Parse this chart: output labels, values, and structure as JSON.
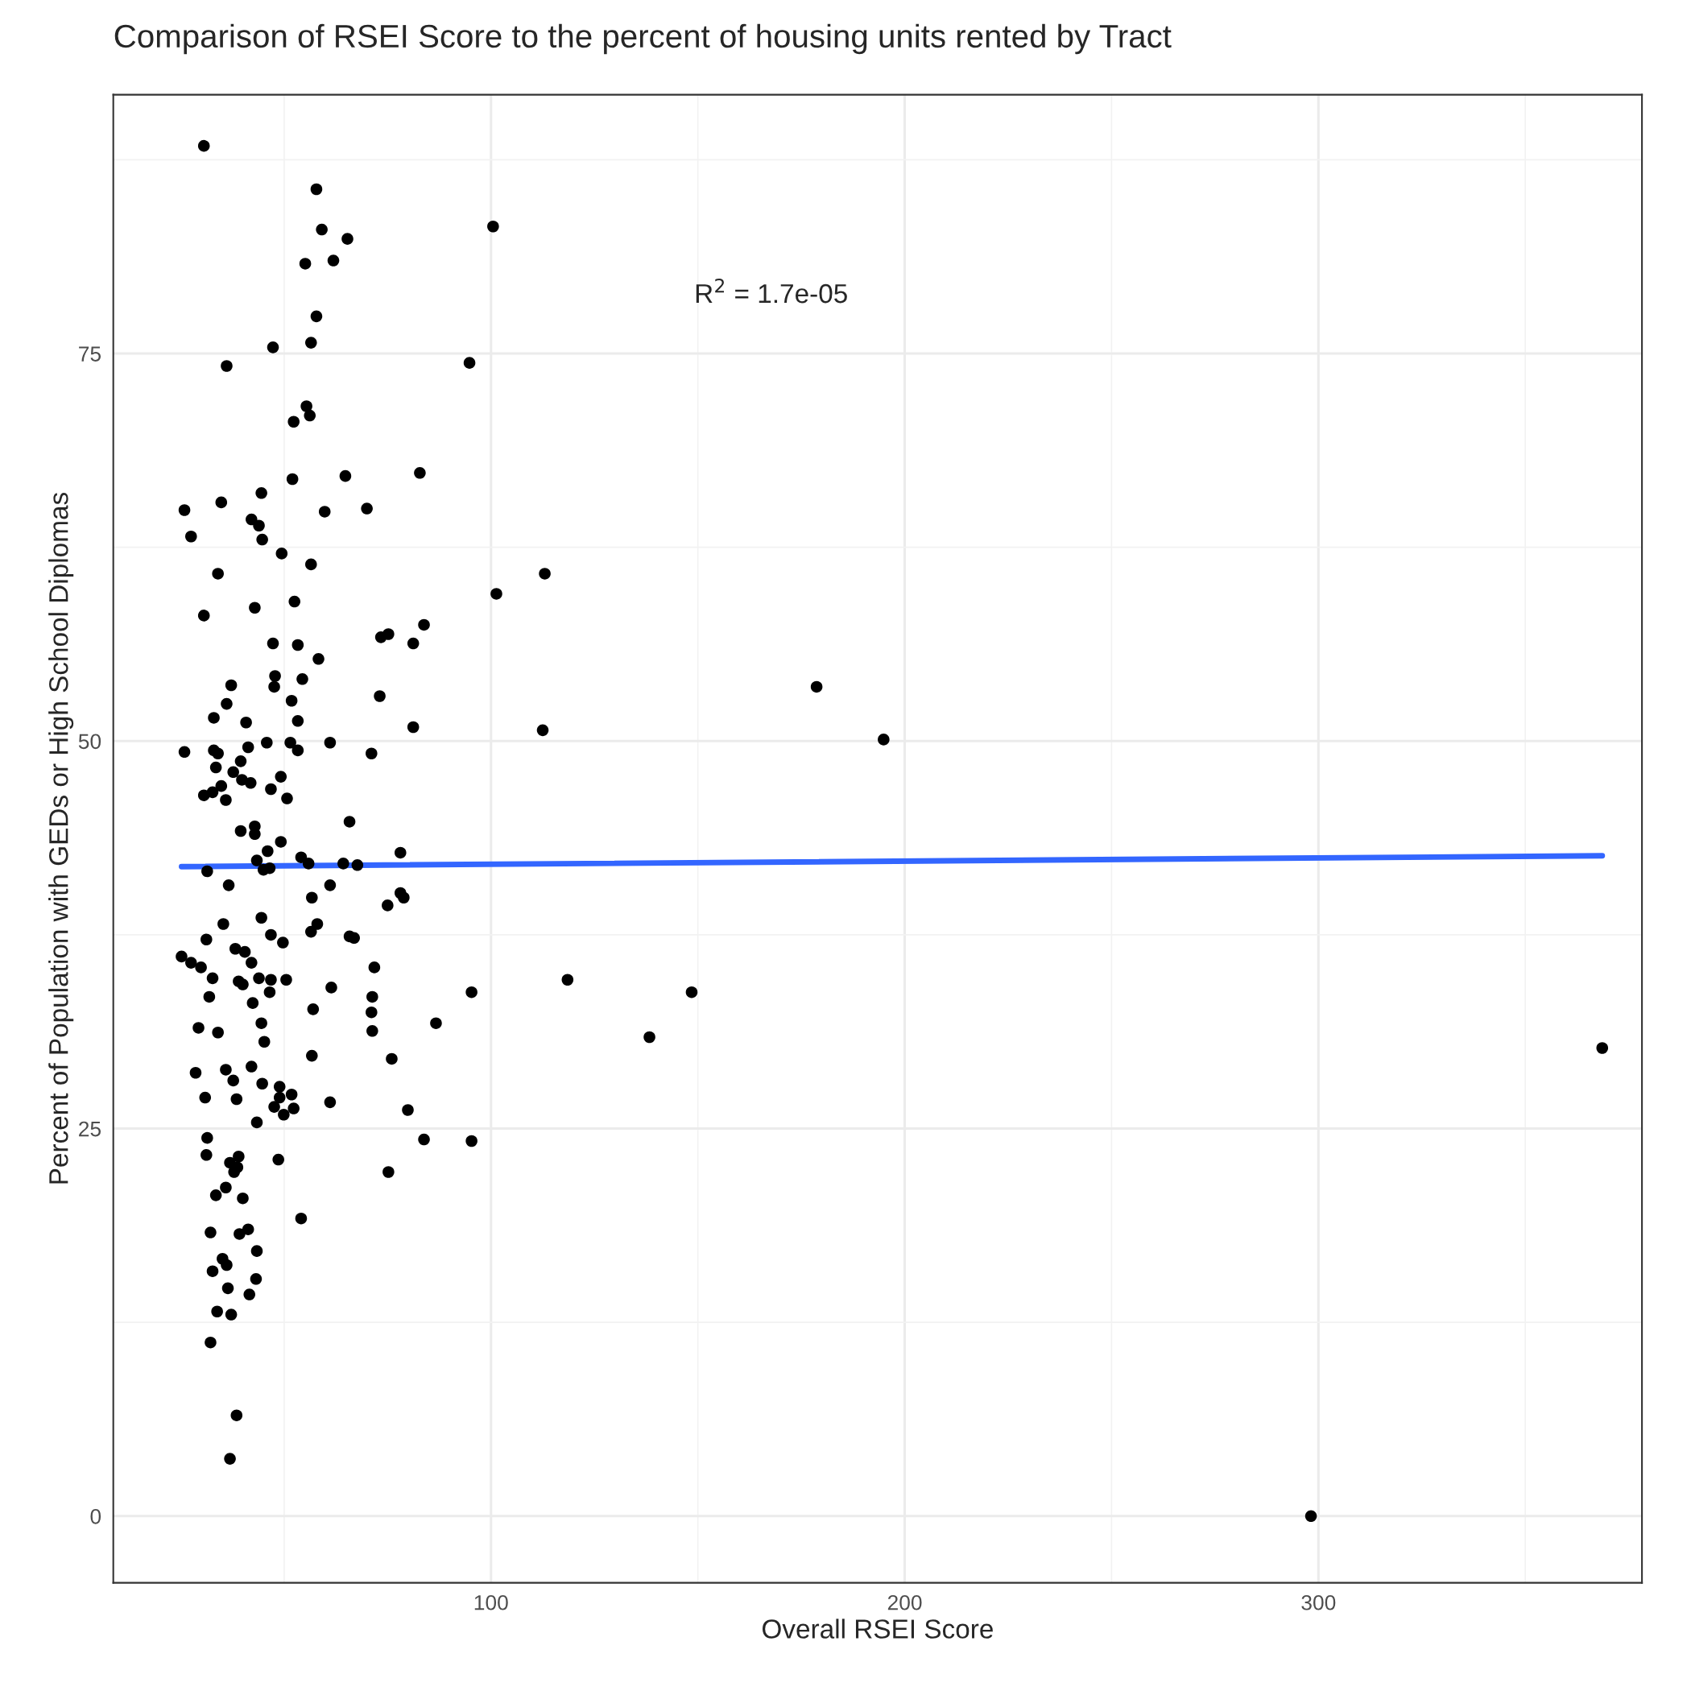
{
  "chart_data": {
    "type": "scatter",
    "title": "Comparison of RSEI Score to the percent of housing units rented by Tract",
    "xlabel": "Overall RSEI Score",
    "ylabel": "Percent of Population with GEDs or High School Diplomas",
    "annotations": [
      "R$^{2}$ = 1.7e-05"
    ],
    "xlim": [
      8.7,
      378.2
    ],
    "ylim": [
      -4.3,
      91.7
    ],
    "xticks": [
      100,
      200,
      300
    ],
    "yticks": [
      0,
      25,
      50,
      75
    ],
    "grid": true,
    "marker": "circle",
    "series": [
      {
        "color": "#000000",
        "x": [
          30.6,
          57.8,
          100.5,
          59.1,
          65.3,
          55.1,
          61.9,
          57.8,
          56.5,
          47.3,
          36.1,
          94.8,
          55.4,
          56.2,
          52.3,
          64.8,
          52.0,
          82.8,
          25.9,
          34.8,
          70.0,
          44.5,
          59.8,
          42.1,
          43.9,
          27.5,
          44.7,
          49.4,
          56.5,
          113.0,
          34.0,
          101.3,
          52.5,
          30.6,
          42.9,
          83.8,
          75.2,
          73.4,
          47.3,
          53.3,
          81.2,
          58.3,
          54.4,
          47.8,
          37.2,
          47.6,
          178.7,
          73.1,
          51.8,
          33.0,
          40.8,
          53.3,
          36.1,
          45.8,
          81.2,
          112.5,
          25.9,
          33.0,
          34.0,
          41.3,
          51.5,
          61.1,
          53.3,
          71.1,
          194.9,
          39.5,
          33.5,
          49.2,
          37.7,
          39.8,
          41.9,
          34.8,
          30.6,
          46.8,
          50.7,
          32.7,
          35.9,
          65.8,
          42.9,
          39.5,
          42.9,
          49.2,
          46.0,
          43.4,
          54.1,
          78.1,
          55.9,
          46.5,
          45.0,
          64.3,
          67.7,
          31.4,
          78.1,
          78.9,
          36.6,
          61.1,
          56.7,
          75.0,
          44.5,
          35.3,
          58.0,
          56.5,
          46.8,
          65.8,
          66.9,
          31.2,
          49.7,
          38.2,
          40.5,
          42.1,
          71.8,
          25.2,
          27.5,
          29.9,
          32.7,
          39.0,
          40.0,
          46.8,
          50.5,
          43.9,
          61.4,
          95.3,
          148.5,
          118.5,
          31.9,
          46.5,
          42.4,
          71.3,
          57.0,
          71.1,
          44.5,
          86.7,
          29.3,
          34.0,
          71.3,
          45.2,
          138.3,
          368.6,
          56.7,
          42.1,
          76.0,
          28.6,
          35.9,
          37.7,
          44.7,
          48.9,
          30.9,
          38.5,
          51.8,
          48.9,
          79.9,
          47.6,
          52.3,
          61.1,
          49.9,
          43.4,
          31.4,
          83.8,
          95.3,
          31.2,
          48.6,
          36.9,
          38.7,
          39.0,
          37.9,
          75.2,
          35.9,
          33.5,
          40.0,
          54.1,
          32.2,
          39.2,
          41.3,
          43.4,
          35.1,
          36.1,
          32.7,
          43.2,
          36.4,
          41.6,
          33.8,
          37.2,
          32.2,
          38.5,
          36.9,
          298.2
        ],
        "values": [
          88.4,
          85.6,
          83.2,
          83.0,
          82.4,
          80.8,
          81.0,
          77.4,
          75.7,
          75.4,
          74.2,
          74.4,
          71.6,
          71.0,
          70.6,
          67.1,
          66.9,
          67.3,
          64.9,
          65.4,
          65.0,
          66.0,
          64.8,
          64.3,
          63.9,
          63.2,
          63.0,
          62.1,
          61.4,
          60.8,
          60.8,
          59.5,
          59.0,
          58.1,
          58.6,
          57.5,
          56.9,
          56.7,
          56.3,
          56.2,
          56.3,
          55.3,
          54.0,
          54.2,
          53.6,
          53.5,
          53.5,
          52.9,
          52.6,
          51.5,
          51.2,
          51.3,
          52.4,
          49.9,
          50.9,
          50.7,
          49.3,
          49.4,
          49.2,
          49.6,
          49.9,
          49.9,
          49.4,
          49.2,
          50.1,
          48.7,
          48.3,
          47.7,
          48.0,
          47.5,
          47.3,
          47.1,
          46.5,
          46.9,
          46.3,
          46.7,
          46.2,
          44.8,
          44.5,
          44.2,
          44.0,
          43.5,
          42.9,
          42.3,
          42.5,
          42.8,
          42.1,
          41.8,
          41.7,
          42.1,
          42.0,
          41.6,
          40.2,
          39.9,
          40.7,
          40.7,
          39.9,
          39.4,
          38.6,
          38.2,
          38.2,
          37.7,
          37.5,
          37.4,
          37.3,
          37.2,
          37.0,
          36.6,
          36.4,
          35.7,
          35.4,
          36.1,
          35.7,
          35.4,
          34.7,
          34.5,
          34.3,
          34.6,
          34.6,
          34.7,
          34.1,
          33.8,
          33.8,
          34.6,
          33.5,
          33.8,
          33.1,
          33.5,
          32.7,
          32.5,
          31.8,
          31.8,
          31.5,
          31.2,
          31.3,
          30.6,
          30.9,
          30.2,
          29.7,
          29.0,
          29.5,
          28.6,
          28.8,
          28.1,
          27.9,
          27.7,
          27.0,
          26.9,
          27.2,
          27.0,
          26.2,
          26.4,
          26.3,
          26.7,
          25.9,
          25.4,
          24.4,
          24.3,
          24.2,
          23.3,
          23.0,
          22.8,
          22.5,
          23.2,
          22.2,
          22.2,
          21.2,
          20.7,
          20.5,
          19.2,
          18.3,
          18.2,
          18.5,
          17.1,
          16.6,
          16.2,
          15.8,
          15.3,
          14.7,
          14.3,
          13.2,
          13.0,
          11.2,
          6.5,
          3.7,
          0
        ]
      },
      {
        "type": "line",
        "color": "#3366ff",
        "x": [
          25.2,
          368.6
        ],
        "values": [
          41.9,
          42.6
        ],
        "line_style": "solid",
        "marker": "none"
      }
    ]
  }
}
